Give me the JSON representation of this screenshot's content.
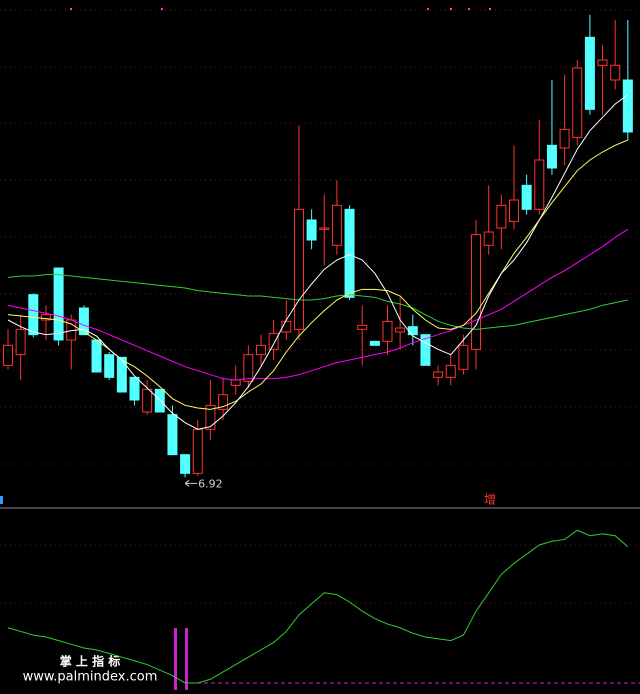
{
  "chart_data": [
    {
      "type": "candlestick",
      "up_color": "#ff3232",
      "down_color": "#54ffff",
      "ylim": [
        6.7,
        10.5
      ],
      "open": [
        7.76,
        7.84,
        8.29,
        8.1,
        8.49,
        7.95,
        8.19,
        7.95,
        7.84,
        7.82,
        7.67,
        7.41,
        7.58,
        7.39,
        7.09,
        6.95,
        7.28,
        7.43,
        7.61,
        7.64,
        7.84,
        7.88,
        8.01,
        8.03,
        8.85,
        8.78,
        8.66,
        8.93,
        8.03,
        7.94,
        7.94,
        8.01,
        8.05,
        7.99,
        7.67,
        7.67,
        7.73,
        7.88,
        8.66,
        8.79,
        8.84,
        9.11,
        8.93,
        9.41,
        9.39,
        9.47,
        10.22,
        10.01,
        9.9,
        9.9
      ],
      "high": [
        8.03,
        8.14,
        8.3,
        8.21,
        8.49,
        8.14,
        8.21,
        7.95,
        7.86,
        7.82,
        7.67,
        7.65,
        7.58,
        7.46,
        7.09,
        7.35,
        7.65,
        7.67,
        7.76,
        7.91,
        7.99,
        8.1,
        8.25,
        9.56,
        8.93,
        9.04,
        9.15,
        8.96,
        8.21,
        7.94,
        8.21,
        8.27,
        8.14,
        7.99,
        7.76,
        7.84,
        7.99,
        8.85,
        9.11,
        9.04,
        9.41,
        9.19,
        9.6,
        9.9,
        9.94,
        10.05,
        10.39,
        10.16,
        10.35,
        10.35
      ],
      "low": [
        7.73,
        7.65,
        7.97,
        7.95,
        7.91,
        7.73,
        7.99,
        7.71,
        7.65,
        7.56,
        7.46,
        7.39,
        7.41,
        7.09,
        6.92,
        6.93,
        7.2,
        7.35,
        7.54,
        7.59,
        7.76,
        7.8,
        7.95,
        7.95,
        8.63,
        8.51,
        8.59,
        8.25,
        7.76,
        7.91,
        7.84,
        7.88,
        7.91,
        7.76,
        7.61,
        7.61,
        7.69,
        7.73,
        8.59,
        8.63,
        8.78,
        8.89,
        8.89,
        9.19,
        9.26,
        9.41,
        9.64,
        9.64,
        9.83,
        9.45
      ],
      "close": [
        7.91,
        8.03,
        7.99,
        8.14,
        7.95,
        8.1,
        7.99,
        7.71,
        7.67,
        7.56,
        7.5,
        7.58,
        7.41,
        7.09,
        6.95,
        7.28,
        7.46,
        7.54,
        7.65,
        7.84,
        7.91,
        8.0,
        8.09,
        8.93,
        8.7,
        8.79,
        8.96,
        8.27,
        8.06,
        7.91,
        8.09,
        8.04,
        7.99,
        7.76,
        7.71,
        7.76,
        7.91,
        8.74,
        8.76,
        8.96,
        9.0,
        8.93,
        9.3,
        9.24,
        9.53,
        9.99,
        9.68,
        10.05,
        10.01,
        9.51
      ],
      "series": [
        {
          "color": "#33cc33",
          "values": [
            8.42,
            8.43,
            8.43,
            8.44,
            8.44,
            8.43,
            8.42,
            8.41,
            8.4,
            8.39,
            8.38,
            8.37,
            8.36,
            8.35,
            8.34,
            8.32,
            8.31,
            8.3,
            8.29,
            8.28,
            8.28,
            8.27,
            8.26,
            8.25,
            8.25,
            8.26,
            8.28,
            8.29,
            8.28,
            8.27,
            8.24,
            8.22,
            8.19,
            8.14,
            8.09,
            8.06,
            8.04,
            8.03,
            8.04,
            8.05,
            8.06,
            8.08,
            8.1,
            8.12,
            8.14,
            8.16,
            8.18,
            8.21,
            8.23,
            8.25
          ]
        },
        {
          "color": "#ff00ff",
          "values": [
            8.21,
            8.19,
            8.17,
            8.15,
            8.13,
            8.1,
            8.06,
            8.03,
            7.99,
            7.95,
            7.91,
            7.87,
            7.83,
            7.79,
            7.75,
            7.72,
            7.69,
            7.66,
            7.65,
            7.66,
            7.66,
            7.66,
            7.67,
            7.69,
            7.72,
            7.75,
            7.78,
            7.8,
            7.82,
            7.84,
            7.86,
            7.89,
            7.93,
            7.96,
            7.99,
            8.02,
            8.06,
            8.1,
            8.14,
            8.18,
            8.24,
            8.3,
            8.36,
            8.42,
            8.47,
            8.53,
            8.59,
            8.65,
            8.72,
            8.78
          ]
        },
        {
          "color": "#ffff66",
          "values": [
            8.14,
            8.13,
            8.12,
            8.11,
            8.1,
            8.07,
            8.01,
            7.95,
            7.88,
            7.8,
            7.75,
            7.68,
            7.6,
            7.51,
            7.46,
            7.44,
            7.43,
            7.45,
            7.49,
            7.56,
            7.62,
            7.72,
            7.86,
            7.98,
            8.08,
            8.17,
            8.25,
            8.3,
            8.33,
            8.33,
            8.32,
            8.28,
            8.18,
            8.1,
            8.04,
            8.03,
            8.06,
            8.15,
            8.3,
            8.45,
            8.6,
            8.72,
            8.85,
            8.98,
            9.1,
            9.22,
            9.3,
            9.36,
            9.41,
            9.45
          ]
        },
        {
          "color": "#ffffff",
          "values": [
            8.1,
            8.05,
            8.01,
            7.99,
            8.0,
            8.02,
            8.03,
            7.98,
            7.88,
            7.8,
            7.68,
            7.59,
            7.5,
            7.4,
            7.33,
            7.28,
            7.3,
            7.38,
            7.48,
            7.6,
            7.75,
            7.92,
            8.1,
            8.25,
            8.37,
            8.48,
            8.55,
            8.59,
            8.55,
            8.45,
            8.3,
            8.1,
            7.98,
            7.93,
            7.88,
            7.84,
            7.95,
            8.06,
            8.28,
            8.45,
            8.55,
            8.68,
            8.85,
            9.02,
            9.2,
            9.38,
            9.52,
            9.62,
            9.72,
            9.79
          ]
        }
      ],
      "signal_label": "增"
    },
    {
      "type": "line",
      "color": "#33cc33",
      "ylim": [
        0,
        100
      ],
      "values": [
        36,
        34,
        32,
        31,
        29,
        27,
        25,
        24,
        22,
        20,
        18,
        16,
        13,
        10,
        6,
        6,
        8,
        12,
        16,
        20,
        24,
        28,
        34,
        43,
        49,
        55,
        54,
        50,
        45,
        41,
        38,
        36,
        33,
        31,
        30,
        29,
        32,
        45,
        55,
        65,
        71,
        76,
        81,
        83,
        84,
        89,
        86,
        87,
        86,
        80
      ]
    }
  ],
  "watermark": {
    "title": "掌 上 指 标",
    "url": "www.palmindex.com"
  }
}
